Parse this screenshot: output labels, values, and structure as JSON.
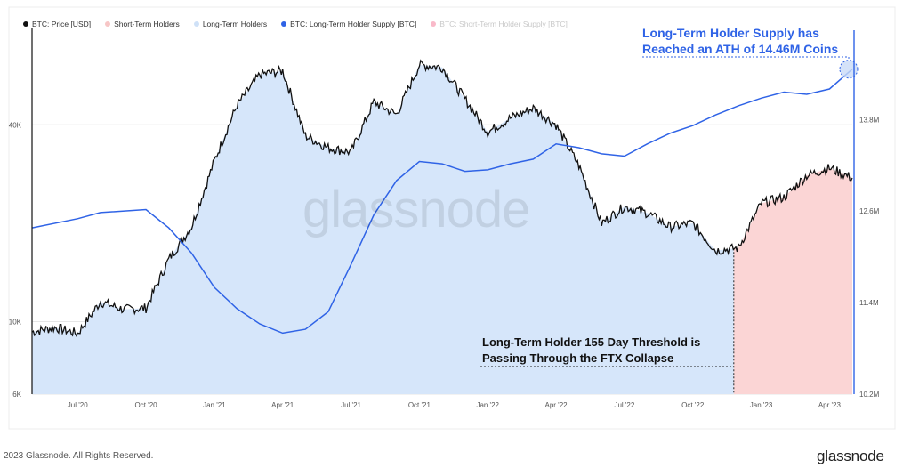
{
  "legend": [
    {
      "label": "BTC: Price [USD]",
      "color": "#111111",
      "faded": false
    },
    {
      "label": "Short-Term Holders",
      "color": "#f7c6c6",
      "faded": false
    },
    {
      "label": "Long-Term Holders",
      "color": "#cfe1f7",
      "faded": false
    },
    {
      "label": "BTC: Long-Term Holder Supply [BTC]",
      "color": "#2f63e6",
      "faded": false
    },
    {
      "label": "BTC: Short-Term Holder Supply [BTC]",
      "color": "#f2537a",
      "faded": true
    }
  ],
  "annotations": {
    "ath_line1": "Long-Term Holder Supply has",
    "ath_line2": "Reached an ATH of 14.46M Coins",
    "ftx_line1": "Long-Term Holder 155 Day Threshold is",
    "ftx_line2": "Passing Through the FTX Collapse"
  },
  "watermark": "glassnode",
  "footer": {
    "copyright": "2023 Glassnode. All Rights Reserved.",
    "logo": "glassnode"
  },
  "colors": {
    "price": "#111111",
    "lth_fill": "#d6e6fa",
    "sth_fill": "#fbd5d5",
    "supply": "#2f63e6",
    "grid": "#e6e6e6"
  },
  "chart_data": {
    "type": "line",
    "x_ticks": [
      "Jul '20",
      "Oct '20",
      "Jan '21",
      "Apr '21",
      "Jul '21",
      "Oct '21",
      "Jan '22",
      "Apr '22",
      "Jul '22",
      "Oct '22",
      "Jan '23",
      "Apr '23"
    ],
    "y_left_ticks": [
      "6K",
      "10K",
      "40K"
    ],
    "y_right_ticks": [
      "10.2M",
      "11.4M",
      "12.6M",
      "13.8M"
    ],
    "y_left_scale": "log",
    "y_left_range": [
      6000,
      75000
    ],
    "y_right_range": [
      10200000,
      14900000
    ],
    "shading_split_date": "Dec '22",
    "series": [
      {
        "name": "BTC: Price [USD]",
        "axis": "left",
        "points": [
          [
            "May '20",
            9300
          ],
          [
            "Jun '20",
            9600
          ],
          [
            "Jul '20",
            9200
          ],
          [
            "Aug '20",
            11500
          ],
          [
            "Sep '20",
            10900
          ],
          [
            "Oct '20",
            11000
          ],
          [
            "Nov '20",
            15500
          ],
          [
            "Dec '20",
            19500
          ],
          [
            "Jan '21",
            31000
          ],
          [
            "Feb '21",
            46000
          ],
          [
            "Mar '21",
            57000
          ],
          [
            "Apr '21",
            58500
          ],
          [
            "May '21",
            37000
          ],
          [
            "Jun '21",
            34000
          ],
          [
            "Jul '21",
            33000
          ],
          [
            "Aug '21",
            47000
          ],
          [
            "Sep '21",
            43000
          ],
          [
            "Oct '21",
            61000
          ],
          [
            "Nov '21",
            60000
          ],
          [
            "Dec '21",
            48000
          ],
          [
            "Jan '22",
            38000
          ],
          [
            "Feb '22",
            42000
          ],
          [
            "Mar '22",
            45000
          ],
          [
            "Apr '22",
            40000
          ],
          [
            "May '22",
            30000
          ],
          [
            "Jun '22",
            20000
          ],
          [
            "Jul '22",
            22500
          ],
          [
            "Aug '22",
            21500
          ],
          [
            "Sep '22",
            19500
          ],
          [
            "Oct '22",
            20000
          ],
          [
            "Nov '22",
            16500
          ],
          [
            "Dec '22",
            16800
          ],
          [
            "Jan '23",
            23000
          ],
          [
            "Feb '23",
            24000
          ],
          [
            "Mar '23",
            28000
          ],
          [
            "Apr '23",
            29500
          ],
          [
            "May '23",
            27500
          ]
        ]
      },
      {
        "name": "BTC: Long-Term Holder Supply [BTC]",
        "axis": "right",
        "points": [
          [
            "May '20",
            12.38
          ],
          [
            "Jul '20",
            12.5
          ],
          [
            "Aug '20",
            12.58
          ],
          [
            "Oct '20",
            12.62
          ],
          [
            "Nov '20",
            12.38
          ],
          [
            "Dec '20",
            12.05
          ],
          [
            "Jan '21",
            11.6
          ],
          [
            "Feb '21",
            11.32
          ],
          [
            "Mar '21",
            11.12
          ],
          [
            "Apr '21",
            11.0
          ],
          [
            "May '21",
            11.05
          ],
          [
            "Jun '21",
            11.28
          ],
          [
            "Jul '21",
            11.9
          ],
          [
            "Aug '21",
            12.55
          ],
          [
            "Sep '21",
            13.0
          ],
          [
            "Oct '21",
            13.25
          ],
          [
            "Nov '21",
            13.22
          ],
          [
            "Dec '21",
            13.12
          ],
          [
            "Jan '22",
            13.14
          ],
          [
            "Feb '22",
            13.22
          ],
          [
            "Mar '22",
            13.28
          ],
          [
            "Apr '22",
            13.48
          ],
          [
            "May '22",
            13.43
          ],
          [
            "Jun '22",
            13.35
          ],
          [
            "Jul '22",
            13.32
          ],
          [
            "Aug '22",
            13.48
          ],
          [
            "Sep '22",
            13.62
          ],
          [
            "Oct '22",
            13.72
          ],
          [
            "Nov '22",
            13.86
          ],
          [
            "Dec '22",
            13.98
          ],
          [
            "Jan '23",
            14.08
          ],
          [
            "Feb '23",
            14.16
          ],
          [
            "Mar '23",
            14.13
          ],
          [
            "Apr '23",
            14.2
          ],
          [
            "May '23",
            14.46
          ]
        ]
      }
    ]
  }
}
